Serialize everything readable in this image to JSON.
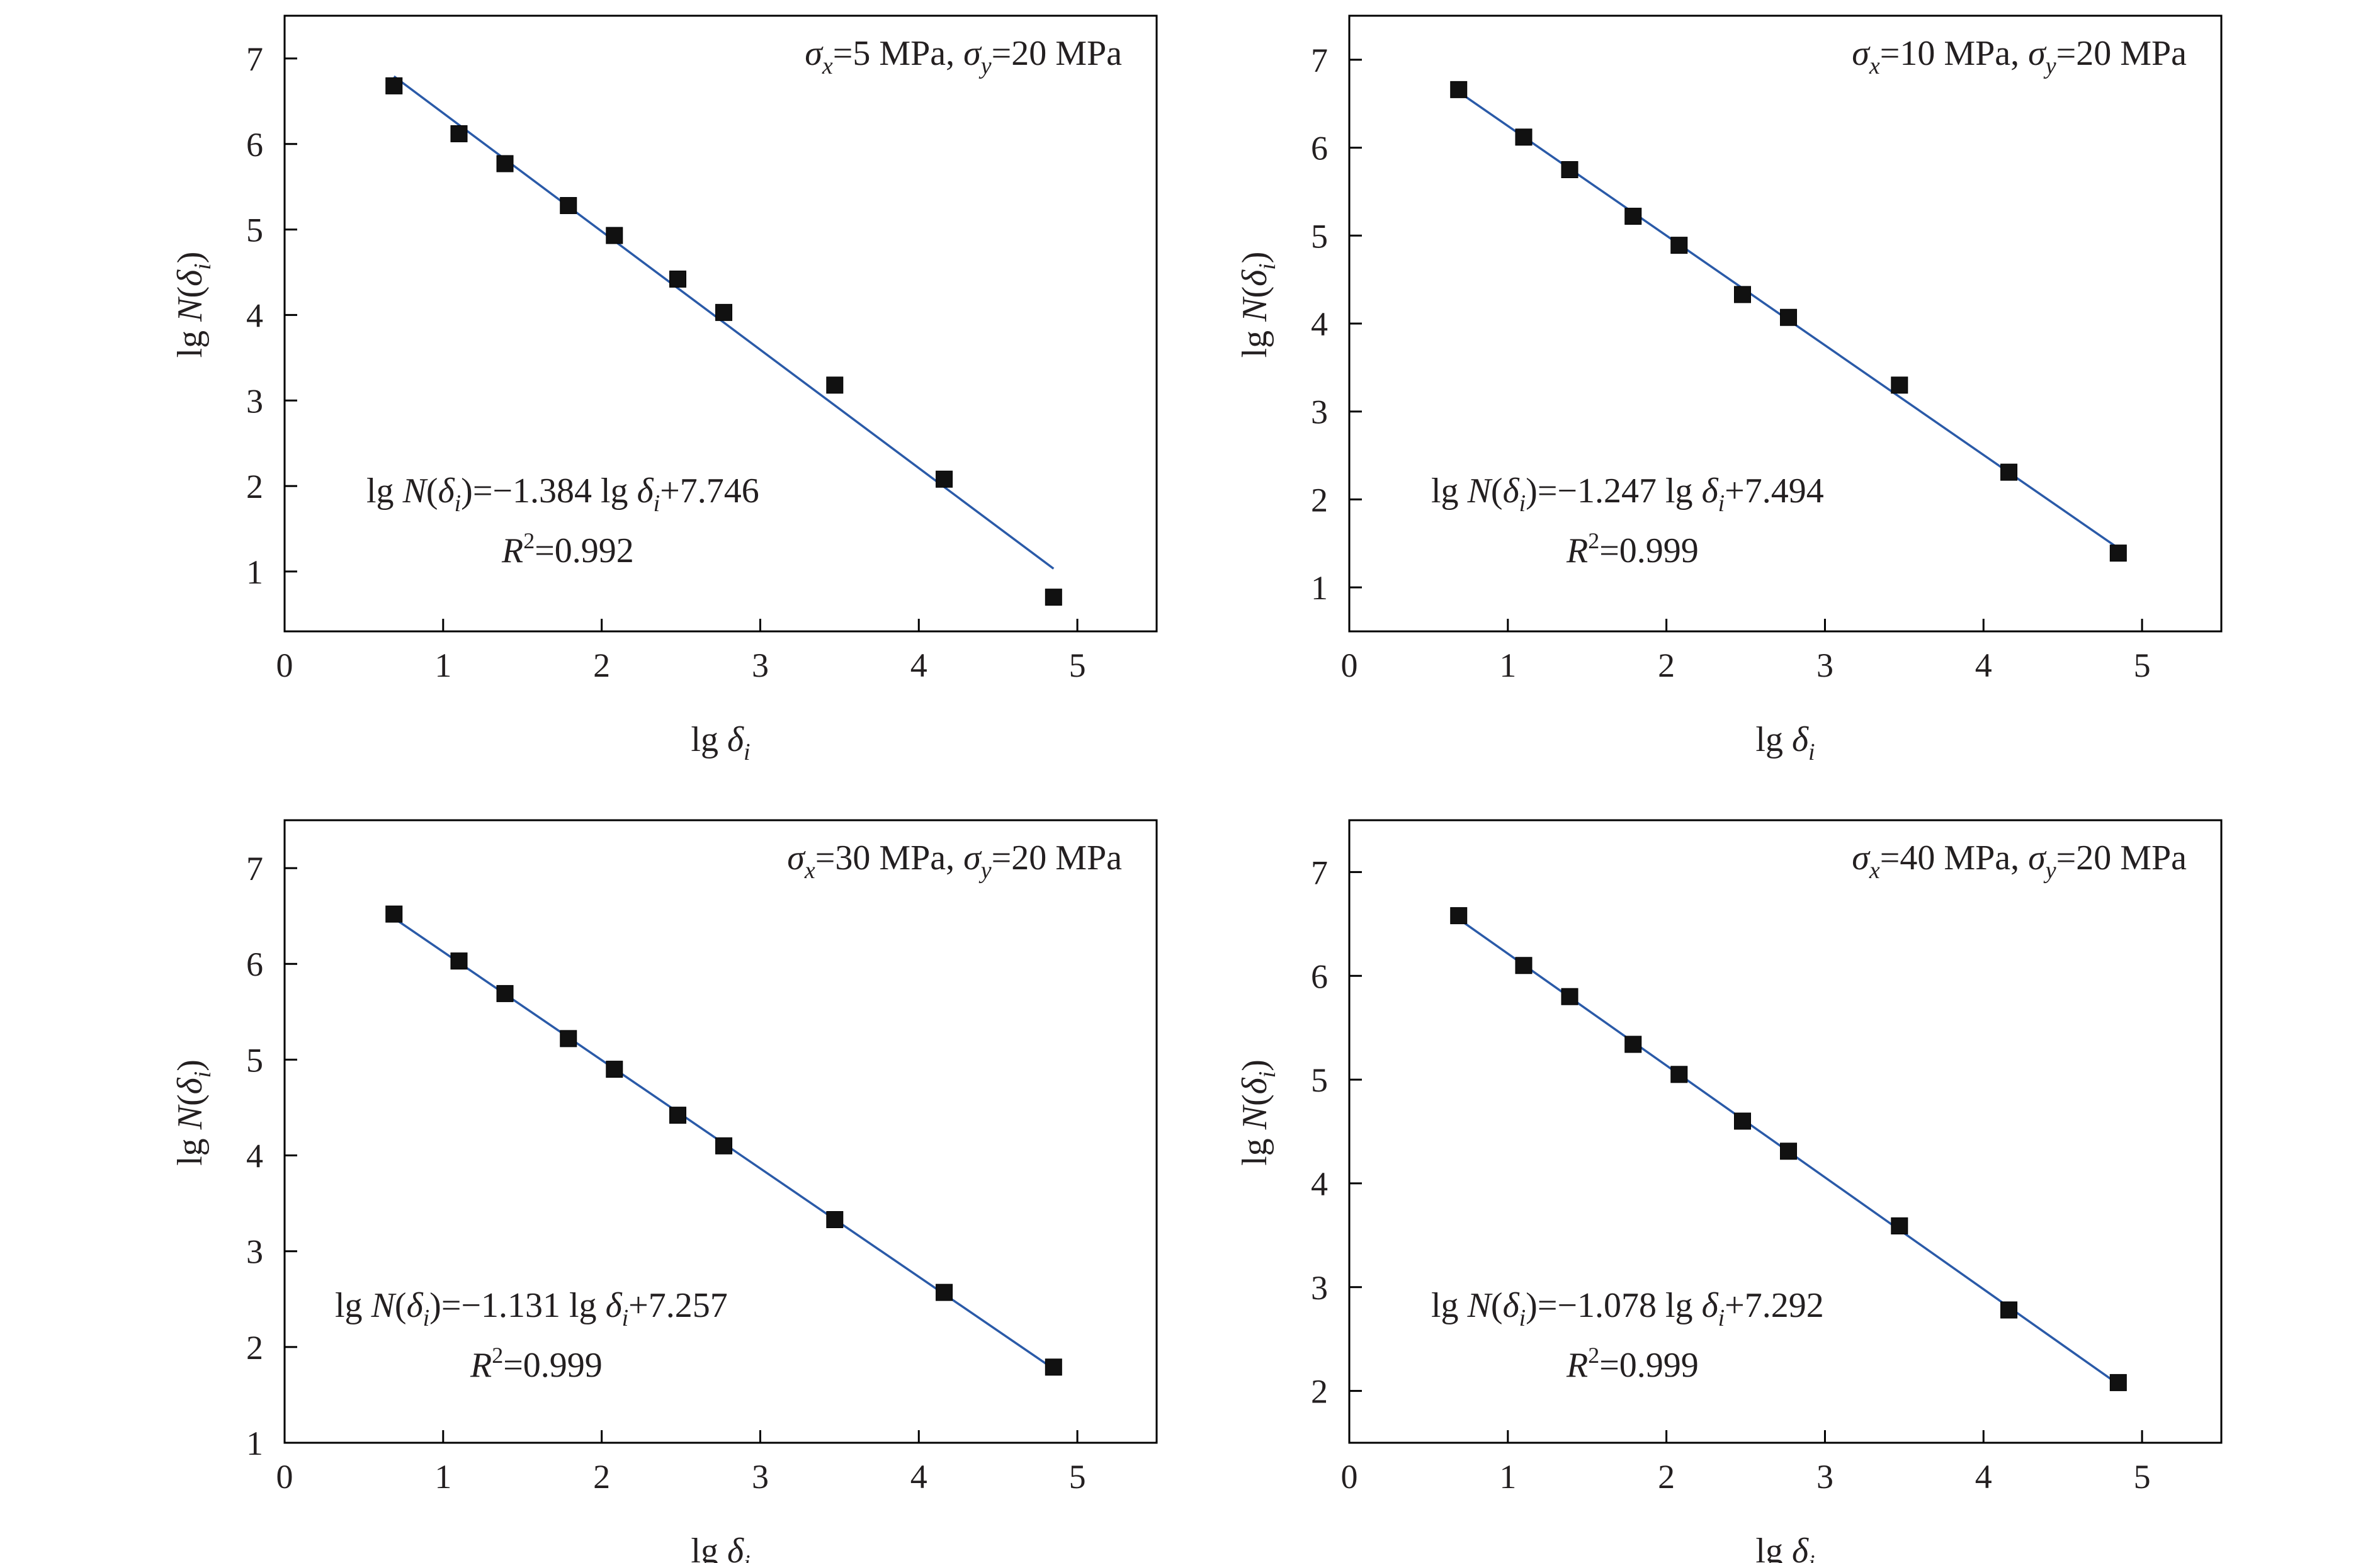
{
  "chart_data": [
    {
      "type": "scatter",
      "xlabel": [
        "lg ",
        "δ",
        "i"
      ],
      "ylabel": [
        "lg ",
        "N",
        "(",
        "δ",
        "i",
        ")"
      ],
      "xlim": [
        0,
        5.5
      ],
      "ylim": [
        0.3,
        7.5
      ],
      "xticks": [
        "0",
        "1",
        "2",
        "3",
        "4",
        "5"
      ],
      "yticks": [
        "1",
        "2",
        "3",
        "4",
        "5",
        "6",
        "7"
      ],
      "condition": {
        "sx_label": "σ",
        "sx_sub": "x",
        "sx_value": "=5 MPa, ",
        "sy_label": "σ",
        "sy_sub": "y",
        "sy_value": "=20 MPa"
      },
      "equation": {
        "prefix": "lg ",
        "N": "N",
        "open": "(",
        "delta": "δ",
        "sub": "i",
        "close": ")",
        "body": "=−1.384 lg ",
        "delta2": "δ",
        "sub2": "i",
        "tail": "+7.746"
      },
      "r2": {
        "R": "R",
        "sup": "2",
        "value": "=0.992"
      },
      "fit": {
        "slope": -1.384,
        "intercept": 7.746
      },
      "x": [
        0.69,
        1.1,
        1.39,
        1.79,
        2.08,
        2.48,
        2.77,
        3.47,
        4.16,
        4.85
      ],
      "y": [
        6.68,
        6.12,
        5.77,
        5.28,
        4.93,
        4.42,
        4.03,
        3.18,
        2.08,
        0.7
      ]
    },
    {
      "type": "scatter",
      "xlabel": [
        "lg ",
        "δ",
        "i"
      ],
      "ylabel": [
        "lg ",
        "N",
        "(",
        "δ",
        "i",
        ")"
      ],
      "xlim": [
        0,
        5.5
      ],
      "ylim": [
        0.5,
        7.5
      ],
      "xticks": [
        "0",
        "1",
        "2",
        "3",
        "4",
        "5"
      ],
      "yticks": [
        "1",
        "2",
        "3",
        "4",
        "5",
        "6",
        "7"
      ],
      "condition": {
        "sx_label": "σ",
        "sx_sub": "x",
        "sx_value": "=10 MPa, ",
        "sy_label": "σ",
        "sy_sub": "y",
        "sy_value": "=20 MPa"
      },
      "equation": {
        "prefix": "lg ",
        "N": "N",
        "open": "(",
        "delta": "δ",
        "sub": "i",
        "close": ")",
        "body": "=−1.247 lg ",
        "delta2": "δ",
        "sub2": "i",
        "tail": "+7.494"
      },
      "r2": {
        "R": "R",
        "sup": "2",
        "value": "=0.999"
      },
      "fit": {
        "slope": -1.247,
        "intercept": 7.494
      },
      "x": [
        0.69,
        1.1,
        1.39,
        1.79,
        2.08,
        2.48,
        2.77,
        3.47,
        4.16,
        4.85
      ],
      "y": [
        6.66,
        6.12,
        5.75,
        5.22,
        4.89,
        4.33,
        4.07,
        3.3,
        2.31,
        1.39
      ]
    },
    {
      "type": "scatter",
      "xlabel": [
        "lg ",
        "δ",
        "i"
      ],
      "ylabel": [
        "lg ",
        "N",
        "(",
        "δ",
        "i",
        ")"
      ],
      "xlim": [
        0,
        5.5
      ],
      "ylim": [
        1,
        7.5
      ],
      "xticks": [
        "0",
        "1",
        "2",
        "3",
        "4",
        "5"
      ],
      "yticks": [
        "1",
        "2",
        "3",
        "4",
        "5",
        "6",
        "7"
      ],
      "condition": {
        "sx_label": "σ",
        "sx_sub": "x",
        "sx_value": "=30 MPa, ",
        "sy_label": "σ",
        "sy_sub": "y",
        "sy_value": "=20 MPa"
      },
      "equation": {
        "prefix": "lg ",
        "N": "N",
        "open": "(",
        "delta": "δ",
        "sub": "i",
        "close": ")",
        "body": "=−1.131 lg ",
        "delta2": "δ",
        "sub2": "i",
        "tail": "+7.257"
      },
      "r2": {
        "R": "R",
        "sup": "2",
        "value": "=0.999"
      },
      "fit": {
        "slope": -1.131,
        "intercept": 7.257
      },
      "x": [
        0.69,
        1.1,
        1.39,
        1.79,
        2.08,
        2.48,
        2.77,
        3.47,
        4.16,
        4.85
      ],
      "y": [
        6.52,
        6.03,
        5.69,
        5.22,
        4.9,
        4.42,
        4.1,
        3.33,
        2.57,
        1.79
      ]
    },
    {
      "type": "scatter",
      "xlabel": [
        "lg ",
        "δ",
        "i"
      ],
      "ylabel": [
        "lg ",
        "N",
        "(",
        "δ",
        "i",
        ")"
      ],
      "xlim": [
        0,
        5.5
      ],
      "ylim": [
        1.5,
        7.5
      ],
      "xticks": [
        "0",
        "1",
        "2",
        "3",
        "4",
        "5"
      ],
      "yticks": [
        "2",
        "3",
        "4",
        "5",
        "6",
        "7"
      ],
      "condition": {
        "sx_label": "σ",
        "sx_sub": "x",
        "sx_value": "=40 MPa, ",
        "sy_label": "σ",
        "sy_sub": "y",
        "sy_value": "=20 MPa"
      },
      "equation": {
        "prefix": "lg ",
        "N": "N",
        "open": "(",
        "delta": "δ",
        "sub": "i",
        "close": ")",
        "body": "=−1.078 lg ",
        "delta2": "δ",
        "sub2": "i",
        "tail": "+7.292"
      },
      "r2": {
        "R": "R",
        "sup": "2",
        "value": "=0.999"
      },
      "fit": {
        "slope": -1.078,
        "intercept": 7.292
      },
      "x": [
        0.69,
        1.1,
        1.39,
        1.79,
        2.08,
        2.48,
        2.77,
        3.47,
        4.16,
        4.85
      ],
      "y": [
        6.58,
        6.1,
        5.8,
        5.34,
        5.05,
        4.6,
        4.31,
        3.59,
        2.78,
        2.08
      ]
    }
  ]
}
